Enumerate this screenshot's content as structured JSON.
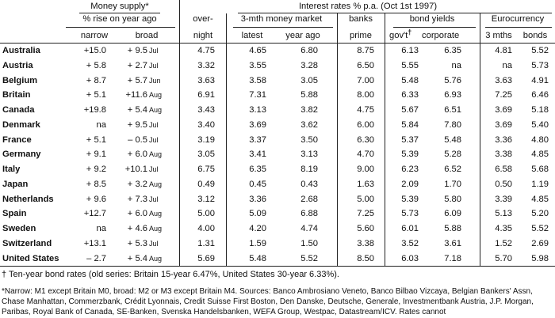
{
  "header": {
    "money_supply": "Money supply*",
    "pct_rise": "% rise on year ago",
    "narrow": "narrow",
    "broad": "broad",
    "interest_rates": "Interest rates % p.a. (Oct 1st 1997)",
    "overnight_1": "over-",
    "overnight_2": "night",
    "money_market": "3-mth money market",
    "latest": "latest",
    "year_ago": "year ago",
    "banks_1": "banks",
    "banks_2": "prime",
    "bond_yields": "bond yields",
    "govt": "gov't",
    "dagger": "†",
    "corporate": "corporate",
    "eurocurrency": "Eurocurrency",
    "three_mths": "3 mths",
    "bonds": "bonds"
  },
  "rows": [
    {
      "country": "Australia",
      "narrow": "+15.0",
      "broad": "+ 9.5",
      "month": "Jul",
      "overnight": "4.75",
      "latest": "4.65",
      "year_ago": "6.80",
      "prime": "8.75",
      "govt": "6.13",
      "corp": "6.35",
      "euro3": "4.81",
      "bonds": "5.52"
    },
    {
      "country": "Austria",
      "narrow": "+ 5.8",
      "broad": "+ 2.7",
      "month": "Jul",
      "overnight": "3.32",
      "latest": "3.55",
      "year_ago": "3.28",
      "prime": "6.50",
      "govt": "5.55",
      "corp": "na",
      "euro3": "na",
      "bonds": "5.73"
    },
    {
      "country": "Belgium",
      "narrow": "+ 8.7",
      "broad": "+ 5.7",
      "month": "Jun",
      "overnight": "3.63",
      "latest": "3.58",
      "year_ago": "3.05",
      "prime": "7.00",
      "govt": "5.48",
      "corp": "5.76",
      "euro3": "3.63",
      "bonds": "4.91"
    },
    {
      "country": "Britain",
      "narrow": "+ 5.1",
      "broad": "+11.6",
      "month": "Aug",
      "overnight": "6.91",
      "latest": "7.31",
      "year_ago": "5.88",
      "prime": "8.00",
      "govt": "6.33",
      "corp": "6.93",
      "euro3": "7.25",
      "bonds": "6.46"
    },
    {
      "country": "Canada",
      "narrow": "+19.8",
      "broad": "+ 5.4",
      "month": "Aug",
      "overnight": "3.43",
      "latest": "3.13",
      "year_ago": "3.82",
      "prime": "4.75",
      "govt": "5.67",
      "corp": "6.51",
      "euro3": "3.69",
      "bonds": "5.18"
    },
    {
      "country": "Denmark",
      "narrow": "na",
      "broad": "+ 9.5",
      "month": "Jul",
      "overnight": "3.40",
      "latest": "3.69",
      "year_ago": "3.62",
      "prime": "6.00",
      "govt": "5.84",
      "corp": "7.80",
      "euro3": "3.69",
      "bonds": "5.40"
    },
    {
      "country": "France",
      "narrow": "+ 5.1",
      "broad": "– 0.5",
      "month": "Jul",
      "overnight": "3.19",
      "latest": "3.37",
      "year_ago": "3.50",
      "prime": "6.30",
      "govt": "5.37",
      "corp": "5.48",
      "euro3": "3.36",
      "bonds": "4.80"
    },
    {
      "country": "Germany",
      "narrow": "+ 9.1",
      "broad": "+ 6.0",
      "month": "Aug",
      "overnight": "3.05",
      "latest": "3.41",
      "year_ago": "3.13",
      "prime": "4.70",
      "govt": "5.39",
      "corp": "5.28",
      "euro3": "3.38",
      "bonds": "4.85"
    },
    {
      "country": "Italy",
      "narrow": "+ 9.2",
      "broad": "+10.1",
      "month": "Jul",
      "overnight": "6.75",
      "latest": "6.35",
      "year_ago": "8.19",
      "prime": "9.00",
      "govt": "6.23",
      "corp": "6.52",
      "euro3": "6.58",
      "bonds": "5.68"
    },
    {
      "country": "Japan",
      "narrow": "+ 8.5",
      "broad": "+ 3.2",
      "month": "Aug",
      "overnight": "0.49",
      "latest": "0.45",
      "year_ago": "0.43",
      "prime": "1.63",
      "govt": "2.09",
      "corp": "1.70",
      "euro3": "0.50",
      "bonds": "1.19"
    },
    {
      "country": "Netherlands",
      "narrow": "+ 9.6",
      "broad": "+ 7.3",
      "month": "Jul",
      "overnight": "3.12",
      "latest": "3.36",
      "year_ago": "2.68",
      "prime": "5.00",
      "govt": "5.39",
      "corp": "5.80",
      "euro3": "3.39",
      "bonds": "4.85"
    },
    {
      "country": "Spain",
      "narrow": "+12.7",
      "broad": "+ 6.0",
      "month": "Aug",
      "overnight": "5.00",
      "latest": "5.09",
      "year_ago": "6.88",
      "prime": "7.25",
      "govt": "5.73",
      "corp": "6.09",
      "euro3": "5.13",
      "bonds": "5.20"
    },
    {
      "country": "Sweden",
      "narrow": "na",
      "broad": "+ 4.6",
      "month": "Aug",
      "overnight": "4.00",
      "latest": "4.20",
      "year_ago": "4.74",
      "prime": "5.60",
      "govt": "6.01",
      "corp": "5.88",
      "euro3": "4.35",
      "bonds": "5.52"
    },
    {
      "country": "Switzerland",
      "narrow": "+13.1",
      "broad": "+ 5.3",
      "month": "Jul",
      "overnight": "1.31",
      "latest": "1.59",
      "year_ago": "1.50",
      "prime": "3.38",
      "govt": "3.52",
      "corp": "3.61",
      "euro3": "1.52",
      "bonds": "2.69"
    },
    {
      "country": "United States",
      "narrow": "– 2.7",
      "broad": "+ 5.4",
      "month": "Aug",
      "overnight": "5.69",
      "latest": "5.48",
      "year_ago": "5.52",
      "prime": "8.50",
      "govt": "6.03",
      "corp": "7.18",
      "euro3": "5.70",
      "bonds": "5.98"
    }
  ],
  "footnotes": {
    "dagger_note": "† Ten-year bond rates (old series: Britain 15-year 6.47%, United States 30-year 6.33%).",
    "narrow_note": "*Narrow: M1 except Britain M0, broad: M2 or M3 except Britain M4. Sources: Banco Ambrosiano Veneto, Banco Bilbao Vizcaya, Belgian Bankers' Assn, Chase Manhattan, Commerzbank, Crédit Lyonnais, Credit Suisse First Boston, Den Danske, Deutsche, Generale, Investmentbank Austria, J.P. Morgan, Paribas, Royal Bank of Canada, SE-Banken, Svenska Handelsbanken, WEFA Group, Westpac, Datastream/ICV. Rates cannot"
  }
}
